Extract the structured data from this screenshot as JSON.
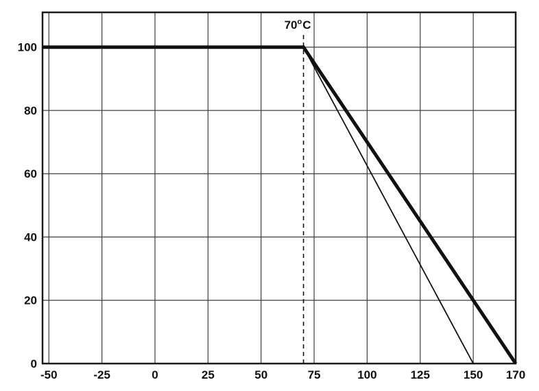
{
  "chart_data": {
    "type": "line",
    "title": "",
    "xlabel": "",
    "ylabel": "",
    "xlim": [
      -53,
      170
    ],
    "ylim": [
      0,
      111
    ],
    "grid": true,
    "legend": "none",
    "xticks": {
      "values": [
        -50,
        -25,
        0,
        25,
        50,
        75,
        100,
        125,
        150,
        170
      ],
      "labels": [
        "-50",
        "-25",
        "0",
        "25",
        "50",
        "75",
        "100",
        "125",
        "150",
        "170"
      ]
    },
    "yticks": {
      "values": [
        0,
        20,
        40,
        60,
        80,
        100
      ],
      "labels": [
        "0",
        "20",
        "40",
        "60",
        "80",
        "100"
      ]
    },
    "annotation": {
      "x": 70,
      "text": "70",
      "superscript": "o",
      "suffix": "C"
    },
    "vline": {
      "x": 70,
      "style": "dashed"
    },
    "series": [
      {
        "name": "derating-curve-thick",
        "style": "thick",
        "x": [
          -53,
          70,
          170
        ],
        "y": [
          100,
          100,
          0
        ]
      },
      {
        "name": "derating-curve-thin",
        "style": "thin",
        "x": [
          70,
          150
        ],
        "y": [
          100,
          0
        ]
      }
    ],
    "colors": {
      "line": "#111111",
      "grid": "#3d3d3d",
      "border": "#1a1a1a",
      "background": "#ffffff",
      "text": "#111111"
    }
  }
}
